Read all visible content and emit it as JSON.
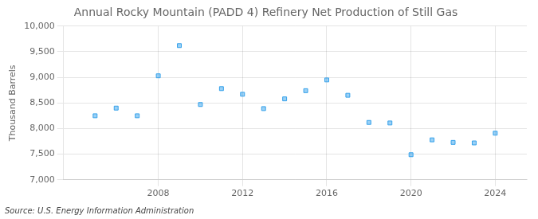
{
  "chart_data": {
    "type": "scatter",
    "title": "Annual Rocky Mountain (PADD 4) Refinery Net Production of Still Gas",
    "ylabel": "Thousand Barrels",
    "source": "Source: U.S. Energy Information Administration",
    "x": [
      2005,
      2006,
      2007,
      2008,
      2009,
      2010,
      2011,
      2012,
      2013,
      2014,
      2015,
      2016,
      2017,
      2018,
      2019,
      2020,
      2021,
      2022,
      2023,
      2024
    ],
    "values": [
      8250,
      8400,
      8250,
      9030,
      9620,
      8470,
      8780,
      8670,
      8390,
      8580,
      8740,
      8950,
      8650,
      8120,
      8110,
      7490,
      7780,
      7730,
      7720,
      7910
    ],
    "marker": "square",
    "xlim": [
      2003.5,
      2025.5
    ],
    "xticks": [
      2008,
      2012,
      2016,
      2020,
      2024
    ],
    "ylim": [
      7000,
      10000
    ],
    "yticks": [
      {
        "value": 7000,
        "label": "7,000"
      },
      {
        "value": 7500,
        "label": "7,500"
      },
      {
        "value": 8000,
        "label": "8,000"
      },
      {
        "value": 8500,
        "label": "8,500"
      },
      {
        "value": 9000,
        "label": "9,000"
      },
      {
        "value": 9500,
        "label": "9,500"
      },
      {
        "value": 10000,
        "label": "10,000"
      }
    ],
    "grid": true
  }
}
